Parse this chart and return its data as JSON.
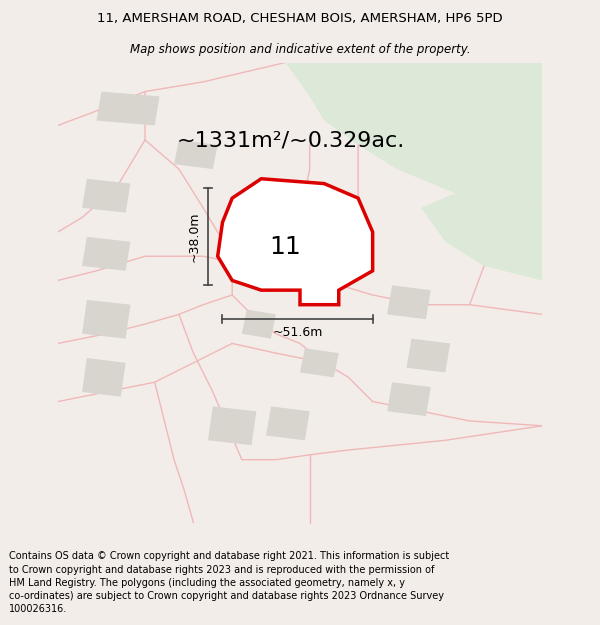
{
  "title": "11, AMERSHAM ROAD, CHESHAM BOIS, AMERSHAM, HP6 5PD",
  "subtitle": "Map shows position and indicative extent of the property.",
  "area_text": "~1331m²/~0.329ac.",
  "number_label": "11",
  "dim_width": "~51.6m",
  "dim_height": "~38.0m",
  "footer": "Contains OS data © Crown copyright and database right 2021. This information is subject to Crown copyright and database rights 2023 and is reproduced with the permission of HM Land Registry. The polygons (including the associated geometry, namely x, y co-ordinates) are subject to Crown copyright and database rights 2023 Ordnance Survey 100026316.",
  "bg_color": "#f2ede8",
  "map_bg": "#ffffff",
  "green_area_color": "#dce9d8",
  "pink_line_color": "#f0b8b8",
  "red_outline_color": "#dd0000",
  "gray_building_color": "#d8d4ce",
  "dim_line_color": "#444444",
  "title_fontsize": 9.5,
  "subtitle_fontsize": 8.5,
  "footer_fontsize": 7.0,
  "area_fontsize": 16,
  "number_fontsize": 18
}
